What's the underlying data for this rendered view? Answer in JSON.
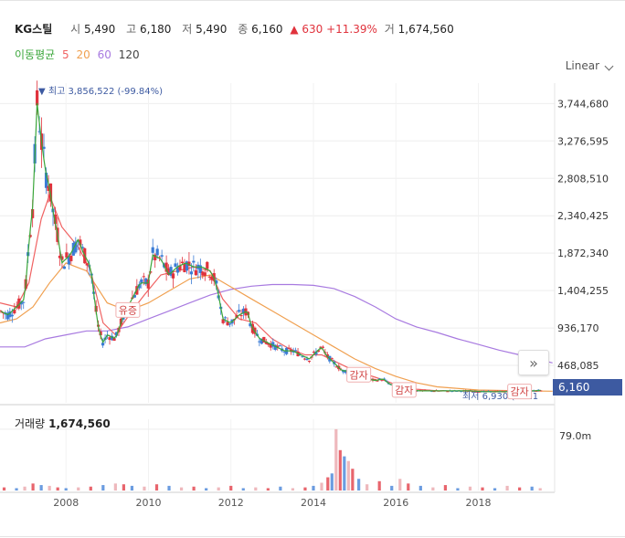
{
  "header": {
    "name": "KG스틸",
    "open_label": "시",
    "open": "5,490",
    "high_label": "고",
    "high": "6,180",
    "low_label": "저",
    "low": "5,490",
    "close_label": "종",
    "close": "6,160",
    "change_arrow": "▲",
    "change": "630",
    "change_pct": "+11.39%",
    "volume_label": "거",
    "volume": "1,674,560"
  },
  "ma_legend": {
    "label": "이동평균",
    "periods": [
      "5",
      "20",
      "60",
      "120"
    ],
    "colors": [
      "#3aa63a",
      "#f06262",
      "#f0a050",
      "#a87ae0"
    ]
  },
  "scale_selector": "Linear",
  "volume_panel": {
    "label": "거래량",
    "value": "1,674,560",
    "axis_max": "79.0m"
  },
  "current_price_tag": "6,160",
  "nav_button_icon": "double-chevron-right-icon",
  "chart_data": {
    "type": "candlestick",
    "x_ticks": [
      "2008",
      "2010",
      "2012",
      "2014",
      "2016",
      "2018"
    ],
    "y_ticks": [
      "3,744,680",
      "3,276,595",
      "2,808,510",
      "2,340,425",
      "1,872,340",
      "1,404,255",
      "936,170",
      "468,085"
    ],
    "ylim": [
      0,
      4000000
    ],
    "annotations": {
      "high": "▼ 최고 3,856,522 (-99.84%)",
      "low": "최저 6,930 (-11.1",
      "events": [
        {
          "label": "유증",
          "x": 2009.5,
          "y": 1150000
        },
        {
          "label": "감자",
          "x": 2015.1,
          "y": 340000
        },
        {
          "label": "감자",
          "x": 2016.2,
          "y": 150000
        },
        {
          "label": "감자",
          "x": 2019.0,
          "y": 130000
        }
      ]
    },
    "colors": {
      "up": "#e0323c",
      "down": "#3a7bd5",
      "ma5": "#3aa63a",
      "ma20": "#f06262",
      "ma60": "#f0a050",
      "ma120": "#a87ae0"
    },
    "price_path": [
      [
        2006.4,
        1150000
      ],
      [
        2006.6,
        1100000
      ],
      [
        2006.8,
        1200000
      ],
      [
        2007.0,
        1300000
      ],
      [
        2007.1,
        2000000
      ],
      [
        2007.2,
        2500000
      ],
      [
        2007.3,
        3750000
      ],
      [
        2007.4,
        3300000
      ],
      [
        2007.5,
        2900000
      ],
      [
        2007.6,
        2700000
      ],
      [
        2007.7,
        2350000
      ],
      [
        2007.8,
        2100000
      ],
      [
        2007.9,
        1750000
      ],
      [
        2008.1,
        1850000
      ],
      [
        2008.2,
        1950000
      ],
      [
        2008.3,
        2050000
      ],
      [
        2008.4,
        1900000
      ],
      [
        2008.6,
        1700000
      ],
      [
        2008.7,
        1250000
      ],
      [
        2008.8,
        900000
      ],
      [
        2008.9,
        750000
      ],
      [
        2009.0,
        850000
      ],
      [
        2009.2,
        800000
      ],
      [
        2009.4,
        1100000
      ],
      [
        2009.6,
        1300000
      ],
      [
        2009.8,
        1500000
      ],
      [
        2010.0,
        1500000
      ],
      [
        2010.1,
        1850000
      ],
      [
        2010.3,
        1800000
      ],
      [
        2010.5,
        1600000
      ],
      [
        2010.7,
        1700000
      ],
      [
        2010.9,
        1750000
      ],
      [
        2011.1,
        1700000
      ],
      [
        2011.3,
        1700000
      ],
      [
        2011.5,
        1650000
      ],
      [
        2011.6,
        1550000
      ],
      [
        2011.7,
        1350000
      ],
      [
        2011.8,
        1050000
      ],
      [
        2012.0,
        1000000
      ],
      [
        2012.2,
        1100000
      ],
      [
        2012.4,
        1150000
      ],
      [
        2012.5,
        950000
      ],
      [
        2012.7,
        800000
      ],
      [
        2012.9,
        750000
      ],
      [
        2013.1,
        700000
      ],
      [
        2013.3,
        650000
      ],
      [
        2013.5,
        650000
      ],
      [
        2013.7,
        600000
      ],
      [
        2013.9,
        550000
      ],
      [
        2014.0,
        600000
      ],
      [
        2014.1,
        650000
      ],
      [
        2014.2,
        700000
      ],
      [
        2014.3,
        600000
      ],
      [
        2014.5,
        500000
      ],
      [
        2014.7,
        400000
      ],
      [
        2014.9,
        400000
      ],
      [
        2015.1,
        350000
      ],
      [
        2015.3,
        300000
      ],
      [
        2015.5,
        280000
      ],
      [
        2015.7,
        300000
      ],
      [
        2015.8,
        250000
      ],
      [
        2016.0,
        200000
      ],
      [
        2016.3,
        160000
      ],
      [
        2016.6,
        150000
      ],
      [
        2016.9,
        150000
      ],
      [
        2017.2,
        150000
      ],
      [
        2017.5,
        150000
      ],
      [
        2017.8,
        150000
      ],
      [
        2018.1,
        140000
      ],
      [
        2018.4,
        140000
      ],
      [
        2018.7,
        140000
      ],
      [
        2019.0,
        140000
      ],
      [
        2019.3,
        150000
      ],
      [
        2019.5,
        155000
      ]
    ],
    "ma20": [
      [
        2006.4,
        1250000
      ],
      [
        2006.8,
        1200000
      ],
      [
        2007.1,
        1500000
      ],
      [
        2007.4,
        2300000
      ],
      [
        2007.6,
        2600000
      ],
      [
        2007.9,
        2200000
      ],
      [
        2008.3,
        1950000
      ],
      [
        2008.6,
        1650000
      ],
      [
        2008.9,
        1000000
      ],
      [
        2009.2,
        850000
      ],
      [
        2009.6,
        1150000
      ],
      [
        2009.9,
        1350000
      ],
      [
        2010.3,
        1600000
      ],
      [
        2010.7,
        1650000
      ],
      [
        2011.1,
        1700000
      ],
      [
        2011.5,
        1650000
      ],
      [
        2011.8,
        1300000
      ],
      [
        2012.2,
        1050000
      ],
      [
        2012.6,
        1000000
      ],
      [
        2013.0,
        800000
      ],
      [
        2013.4,
        680000
      ],
      [
        2013.8,
        600000
      ],
      [
        2014.2,
        600000
      ],
      [
        2014.6,
        500000
      ],
      [
        2015.0,
        400000
      ],
      [
        2015.5,
        320000
      ],
      [
        2016.0,
        230000
      ],
      [
        2016.5,
        170000
      ],
      [
        2017.0,
        150000
      ],
      [
        2018.0,
        145000
      ],
      [
        2019.5,
        150000
      ]
    ],
    "ma60": [
      [
        2006.4,
        1000000
      ],
      [
        2006.8,
        1050000
      ],
      [
        2007.2,
        1200000
      ],
      [
        2007.6,
        1500000
      ],
      [
        2008.0,
        1750000
      ],
      [
        2008.5,
        1650000
      ],
      [
        2009.0,
        1250000
      ],
      [
        2009.5,
        1150000
      ],
      [
        2010.0,
        1250000
      ],
      [
        2010.5,
        1400000
      ],
      [
        2011.0,
        1550000
      ],
      [
        2011.5,
        1600000
      ],
      [
        2012.0,
        1450000
      ],
      [
        2012.5,
        1300000
      ],
      [
        2013.0,
        1150000
      ],
      [
        2013.5,
        1000000
      ],
      [
        2014.0,
        850000
      ],
      [
        2014.5,
        700000
      ],
      [
        2015.0,
        550000
      ],
      [
        2015.5,
        430000
      ],
      [
        2016.0,
        330000
      ],
      [
        2016.5,
        250000
      ],
      [
        2017.0,
        200000
      ],
      [
        2018.0,
        160000
      ],
      [
        2019.0,
        150000
      ],
      [
        2019.8,
        145000
      ]
    ],
    "ma120": [
      [
        2006.4,
        700000
      ],
      [
        2007.0,
        700000
      ],
      [
        2007.5,
        800000
      ],
      [
        2008.0,
        850000
      ],
      [
        2008.5,
        900000
      ],
      [
        2009.0,
        900000
      ],
      [
        2009.5,
        950000
      ],
      [
        2010.0,
        1050000
      ],
      [
        2010.5,
        1150000
      ],
      [
        2011.0,
        1250000
      ],
      [
        2011.5,
        1350000
      ],
      [
        2012.0,
        1420000
      ],
      [
        2012.5,
        1460000
      ],
      [
        2013.0,
        1480000
      ],
      [
        2013.5,
        1480000
      ],
      [
        2014.0,
        1470000
      ],
      [
        2014.5,
        1430000
      ],
      [
        2015.0,
        1330000
      ],
      [
        2015.5,
        1200000
      ],
      [
        2016.0,
        1050000
      ],
      [
        2016.5,
        950000
      ],
      [
        2017.0,
        880000
      ],
      [
        2017.5,
        800000
      ],
      [
        2018.0,
        730000
      ],
      [
        2018.5,
        660000
      ],
      [
        2019.0,
        600000
      ],
      [
        2019.5,
        540000
      ],
      [
        2019.8,
        500000
      ]
    ],
    "volume_ylim": [
      0,
      80000000
    ],
    "volume_bars": [
      [
        2006.5,
        4000000
      ],
      [
        2006.8,
        3000000
      ],
      [
        2007.0,
        5000000
      ],
      [
        2007.2,
        9000000
      ],
      [
        2007.4,
        7000000
      ],
      [
        2007.6,
        6000000
      ],
      [
        2007.8,
        4000000
      ],
      [
        2008.0,
        3000000
      ],
      [
        2008.3,
        4000000
      ],
      [
        2008.6,
        5000000
      ],
      [
        2008.9,
        7000000
      ],
      [
        2009.2,
        9000000
      ],
      [
        2009.4,
        8000000
      ],
      [
        2009.6,
        6000000
      ],
      [
        2009.9,
        5000000
      ],
      [
        2010.2,
        8000000
      ],
      [
        2010.5,
        6000000
      ],
      [
        2010.8,
        4000000
      ],
      [
        2011.1,
        5000000
      ],
      [
        2011.4,
        3000000
      ],
      [
        2011.7,
        4000000
      ],
      [
        2012.0,
        6000000
      ],
      [
        2012.3,
        3000000
      ],
      [
        2012.6,
        4000000
      ],
      [
        2012.9,
        3000000
      ],
      [
        2013.2,
        5000000
      ],
      [
        2013.5,
        3000000
      ],
      [
        2013.8,
        4000000
      ],
      [
        2014.0,
        6000000
      ],
      [
        2014.2,
        10000000
      ],
      [
        2014.35,
        17000000
      ],
      [
        2014.45,
        22000000
      ],
      [
        2014.55,
        79000000
      ],
      [
        2014.65,
        52000000
      ],
      [
        2014.75,
        44000000
      ],
      [
        2014.85,
        38000000
      ],
      [
        2014.95,
        28000000
      ],
      [
        2015.1,
        15000000
      ],
      [
        2015.3,
        8000000
      ],
      [
        2015.6,
        12000000
      ],
      [
        2015.9,
        6000000
      ],
      [
        2016.1,
        15000000
      ],
      [
        2016.3,
        9000000
      ],
      [
        2016.6,
        6000000
      ],
      [
        2016.9,
        4000000
      ],
      [
        2017.2,
        7000000
      ],
      [
        2017.5,
        3000000
      ],
      [
        2017.8,
        5000000
      ],
      [
        2018.1,
        4000000
      ],
      [
        2018.4,
        3000000
      ],
      [
        2018.7,
        6000000
      ],
      [
        2019.0,
        4000000
      ],
      [
        2019.3,
        5000000
      ],
      [
        2019.5,
        3000000
      ]
    ]
  }
}
